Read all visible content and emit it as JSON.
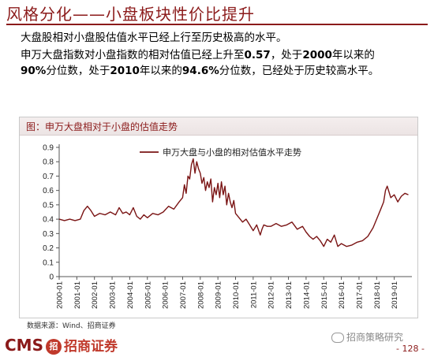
{
  "header": {
    "title": "风格分化——小盘板块性价比提升"
  },
  "text": {
    "line1": "大盘股相对小盘股估值水平已经上行至历史极高的水平。",
    "line2_a": "申万大盘指数对小盘指数的相对估值已经上升至",
    "line2_v1": "0.57",
    "line2_b": "，处于",
    "line2_v2": "2000",
    "line2_c": "年以来的",
    "line3_v1": "90%",
    "line3_a": "分位数，处于",
    "line3_v2": "2010",
    "line3_b": "年以来的",
    "line3_v3": "94.6%",
    "line3_c": "分位数，已经处于历史较高水平。"
  },
  "figure": {
    "caption": "图：申万大盘相对于小盘的估值走势"
  },
  "footer": {
    "source": "数据来源：Wind、招商证券",
    "logo_text": "CMS",
    "logo_badge": "招",
    "logo_cn": "招商证券",
    "watermark": "招商策略研究",
    "page": "- 128 -"
  },
  "colors": {
    "accent": "#8b1a1a",
    "series": "#7a1414"
  },
  "chart_data": {
    "type": "line",
    "title": "",
    "xlabel": "",
    "ylabel": "",
    "ylim": [
      0,
      0.9
    ],
    "yticks": [
      0,
      0.1,
      0.2,
      0.3,
      0.4,
      0.5,
      0.6,
      0.7,
      0.8,
      0.9
    ],
    "xticks": [
      "2000-01",
      "2001-01",
      "2002-01",
      "2003-01",
      "2004-01",
      "2005-01",
      "2006-01",
      "2007-01",
      "2008-01",
      "2009-01",
      "2010-01",
      "2011-01",
      "2012-01",
      "2013-01",
      "2014-01",
      "2015-01",
      "2016-01",
      "2017-01",
      "2018-01",
      "2019-01"
    ],
    "legend": {
      "position": "top",
      "entries": [
        "申万大盘与小盘的相对估值水平走势"
      ]
    },
    "series": [
      {
        "name": "申万大盘与小盘的相对估值水平走势",
        "x": [
          2000.0,
          2000.3,
          2000.6,
          2000.9,
          2001.2,
          2001.4,
          2001.6,
          2001.8,
          2002.0,
          2002.3,
          2002.6,
          2002.9,
          2003.2,
          2003.4,
          2003.6,
          2003.8,
          2004.0,
          2004.2,
          2004.4,
          2004.6,
          2004.8,
          2005.0,
          2005.3,
          2005.6,
          2005.9,
          2006.2,
          2006.5,
          2006.8,
          2007.0,
          2007.1,
          2007.2,
          2007.3,
          2007.4,
          2007.5,
          2007.6,
          2007.7,
          2007.8,
          2007.9,
          2008.0,
          2008.1,
          2008.2,
          2008.3,
          2008.4,
          2008.5,
          2008.6,
          2008.7,
          2008.8,
          2008.9,
          2009.0,
          2009.1,
          2009.2,
          2009.3,
          2009.4,
          2009.5,
          2009.6,
          2009.7,
          2009.8,
          2009.9,
          2010.0,
          2010.2,
          2010.4,
          2010.6,
          2010.8,
          2011.0,
          2011.2,
          2011.4,
          2011.5,
          2011.6,
          2011.8,
          2012.0,
          2012.3,
          2012.6,
          2012.9,
          2013.2,
          2013.5,
          2013.8,
          2014.0,
          2014.2,
          2014.4,
          2014.6,
          2014.8,
          2015.0,
          2015.2,
          2015.4,
          2015.6,
          2015.8,
          2016.0,
          2016.3,
          2016.6,
          2016.9,
          2017.2,
          2017.5,
          2017.8,
          2018.0,
          2018.2,
          2018.4,
          2018.5,
          2018.6,
          2018.8,
          2019.0,
          2019.2,
          2019.4,
          2019.6,
          2019.8
        ],
        "values": [
          0.4,
          0.39,
          0.4,
          0.39,
          0.4,
          0.46,
          0.49,
          0.46,
          0.42,
          0.44,
          0.43,
          0.45,
          0.43,
          0.48,
          0.44,
          0.45,
          0.43,
          0.48,
          0.42,
          0.4,
          0.43,
          0.41,
          0.44,
          0.43,
          0.45,
          0.49,
          0.47,
          0.52,
          0.55,
          0.64,
          0.58,
          0.7,
          0.68,
          0.78,
          0.82,
          0.72,
          0.8,
          0.75,
          0.72,
          0.65,
          0.69,
          0.6,
          0.66,
          0.62,
          0.68,
          0.52,
          0.62,
          0.57,
          0.65,
          0.55,
          0.66,
          0.57,
          0.63,
          0.5,
          0.58,
          0.52,
          0.48,
          0.53,
          0.44,
          0.41,
          0.38,
          0.4,
          0.36,
          0.32,
          0.36,
          0.29,
          0.33,
          0.36,
          0.35,
          0.35,
          0.37,
          0.35,
          0.36,
          0.38,
          0.33,
          0.35,
          0.31,
          0.28,
          0.26,
          0.28,
          0.25,
          0.21,
          0.26,
          0.24,
          0.29,
          0.21,
          0.23,
          0.21,
          0.22,
          0.24,
          0.25,
          0.28,
          0.34,
          0.4,
          0.46,
          0.52,
          0.6,
          0.63,
          0.55,
          0.57,
          0.52,
          0.56,
          0.58,
          0.57
        ]
      }
    ]
  }
}
